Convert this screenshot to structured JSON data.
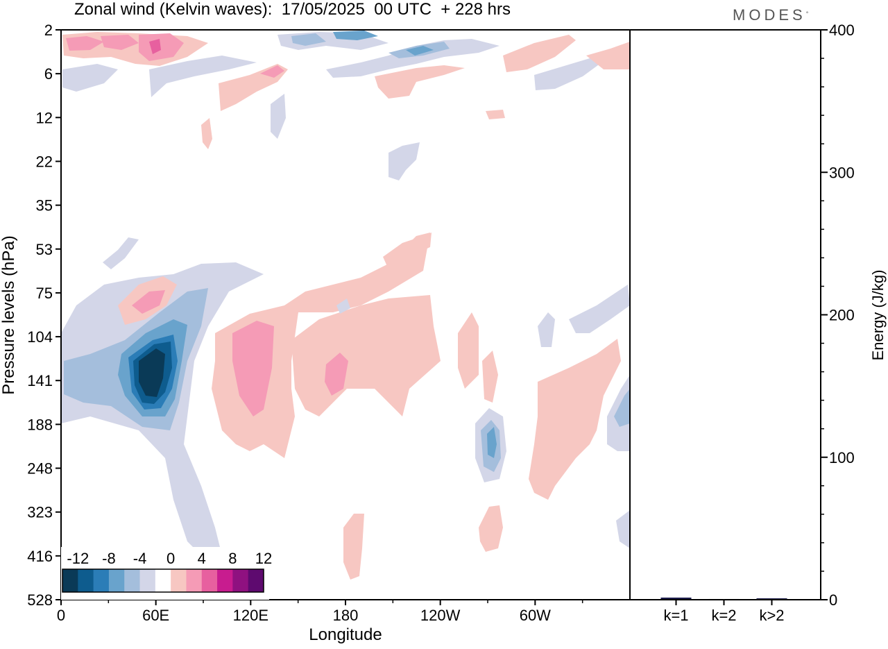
{
  "header": {
    "title": "Zonal wind (Kelvin waves):  17/05/2025  00 UTC  + 228 hrs",
    "brand": "MODES",
    "brand_mark": "°"
  },
  "chart_data": [
    {
      "type": "heatmap",
      "variable": "Zonal wind (Kelvin waves)",
      "xlabel": "Longitude",
      "ylabel": "Pressure levels (hPa)",
      "x_ticks": [
        "0",
        "60E",
        "120E",
        "180",
        "120W",
        "60W"
      ],
      "x_tick_values": [
        0,
        60,
        120,
        180,
        240,
        300
      ],
      "xlim": [
        0,
        360
      ],
      "y_ticks": [
        "2",
        "6",
        "12",
        "22",
        "35",
        "53",
        "75",
        "104",
        "141",
        "188",
        "248",
        "323",
        "416",
        "528"
      ],
      "y_scale": "model levels (pressure), top at 2 hPa, bottom at 528 hPa",
      "colorbar": {
        "labels": [
          "-12",
          "-8",
          "-4",
          "0",
          "4",
          "8",
          "12"
        ],
        "levels": [
          -14,
          -12,
          -10,
          -8,
          -6,
          -4,
          -2,
          2,
          4,
          6,
          8,
          10,
          12,
          14
        ],
        "colors": [
          "#0a3a57",
          "#0e5c8e",
          "#2b7db7",
          "#69a3cc",
          "#a4bedc",
          "#d3d6e8",
          "#ffffff",
          "#f7c7c2",
          "#f59bb6",
          "#e7609f",
          "#c81c8f",
          "#8f1180",
          "#5e0a6f"
        ]
      },
      "features": [
        {
          "sign": "negative",
          "min_value": -14,
          "lon": 55,
          "level": "141",
          "note": "strongest easterly core"
        },
        {
          "sign": "negative",
          "min_value": -6,
          "lon": 270,
          "level": "188"
        },
        {
          "sign": "negative",
          "min_value": -6,
          "lon": 350,
          "level": "188"
        },
        {
          "sign": "negative",
          "min_value": -6,
          "lon": 225,
          "level": "2"
        },
        {
          "sign": "positive",
          "max_value": 6,
          "lon": 120,
          "level": "141"
        },
        {
          "sign": "positive",
          "max_value": 6,
          "lon": 172,
          "level": "141"
        },
        {
          "sign": "positive",
          "max_value": 8,
          "lon": 57,
          "level": "2"
        },
        {
          "sign": "positive",
          "max_value": 6,
          "lon": 52,
          "level": "75"
        }
      ]
    },
    {
      "type": "bar",
      "categories": [
        "k=1",
        "k=2",
        "k>2"
      ],
      "values": [
        1.5,
        0.5,
        1.0
      ],
      "ylabel": "Energy (J/kg)",
      "ylim": [
        0,
        400
      ],
      "y_ticks": [
        0,
        100,
        200,
        300,
        400
      ],
      "bar_color": "#1a1a4a"
    }
  ]
}
